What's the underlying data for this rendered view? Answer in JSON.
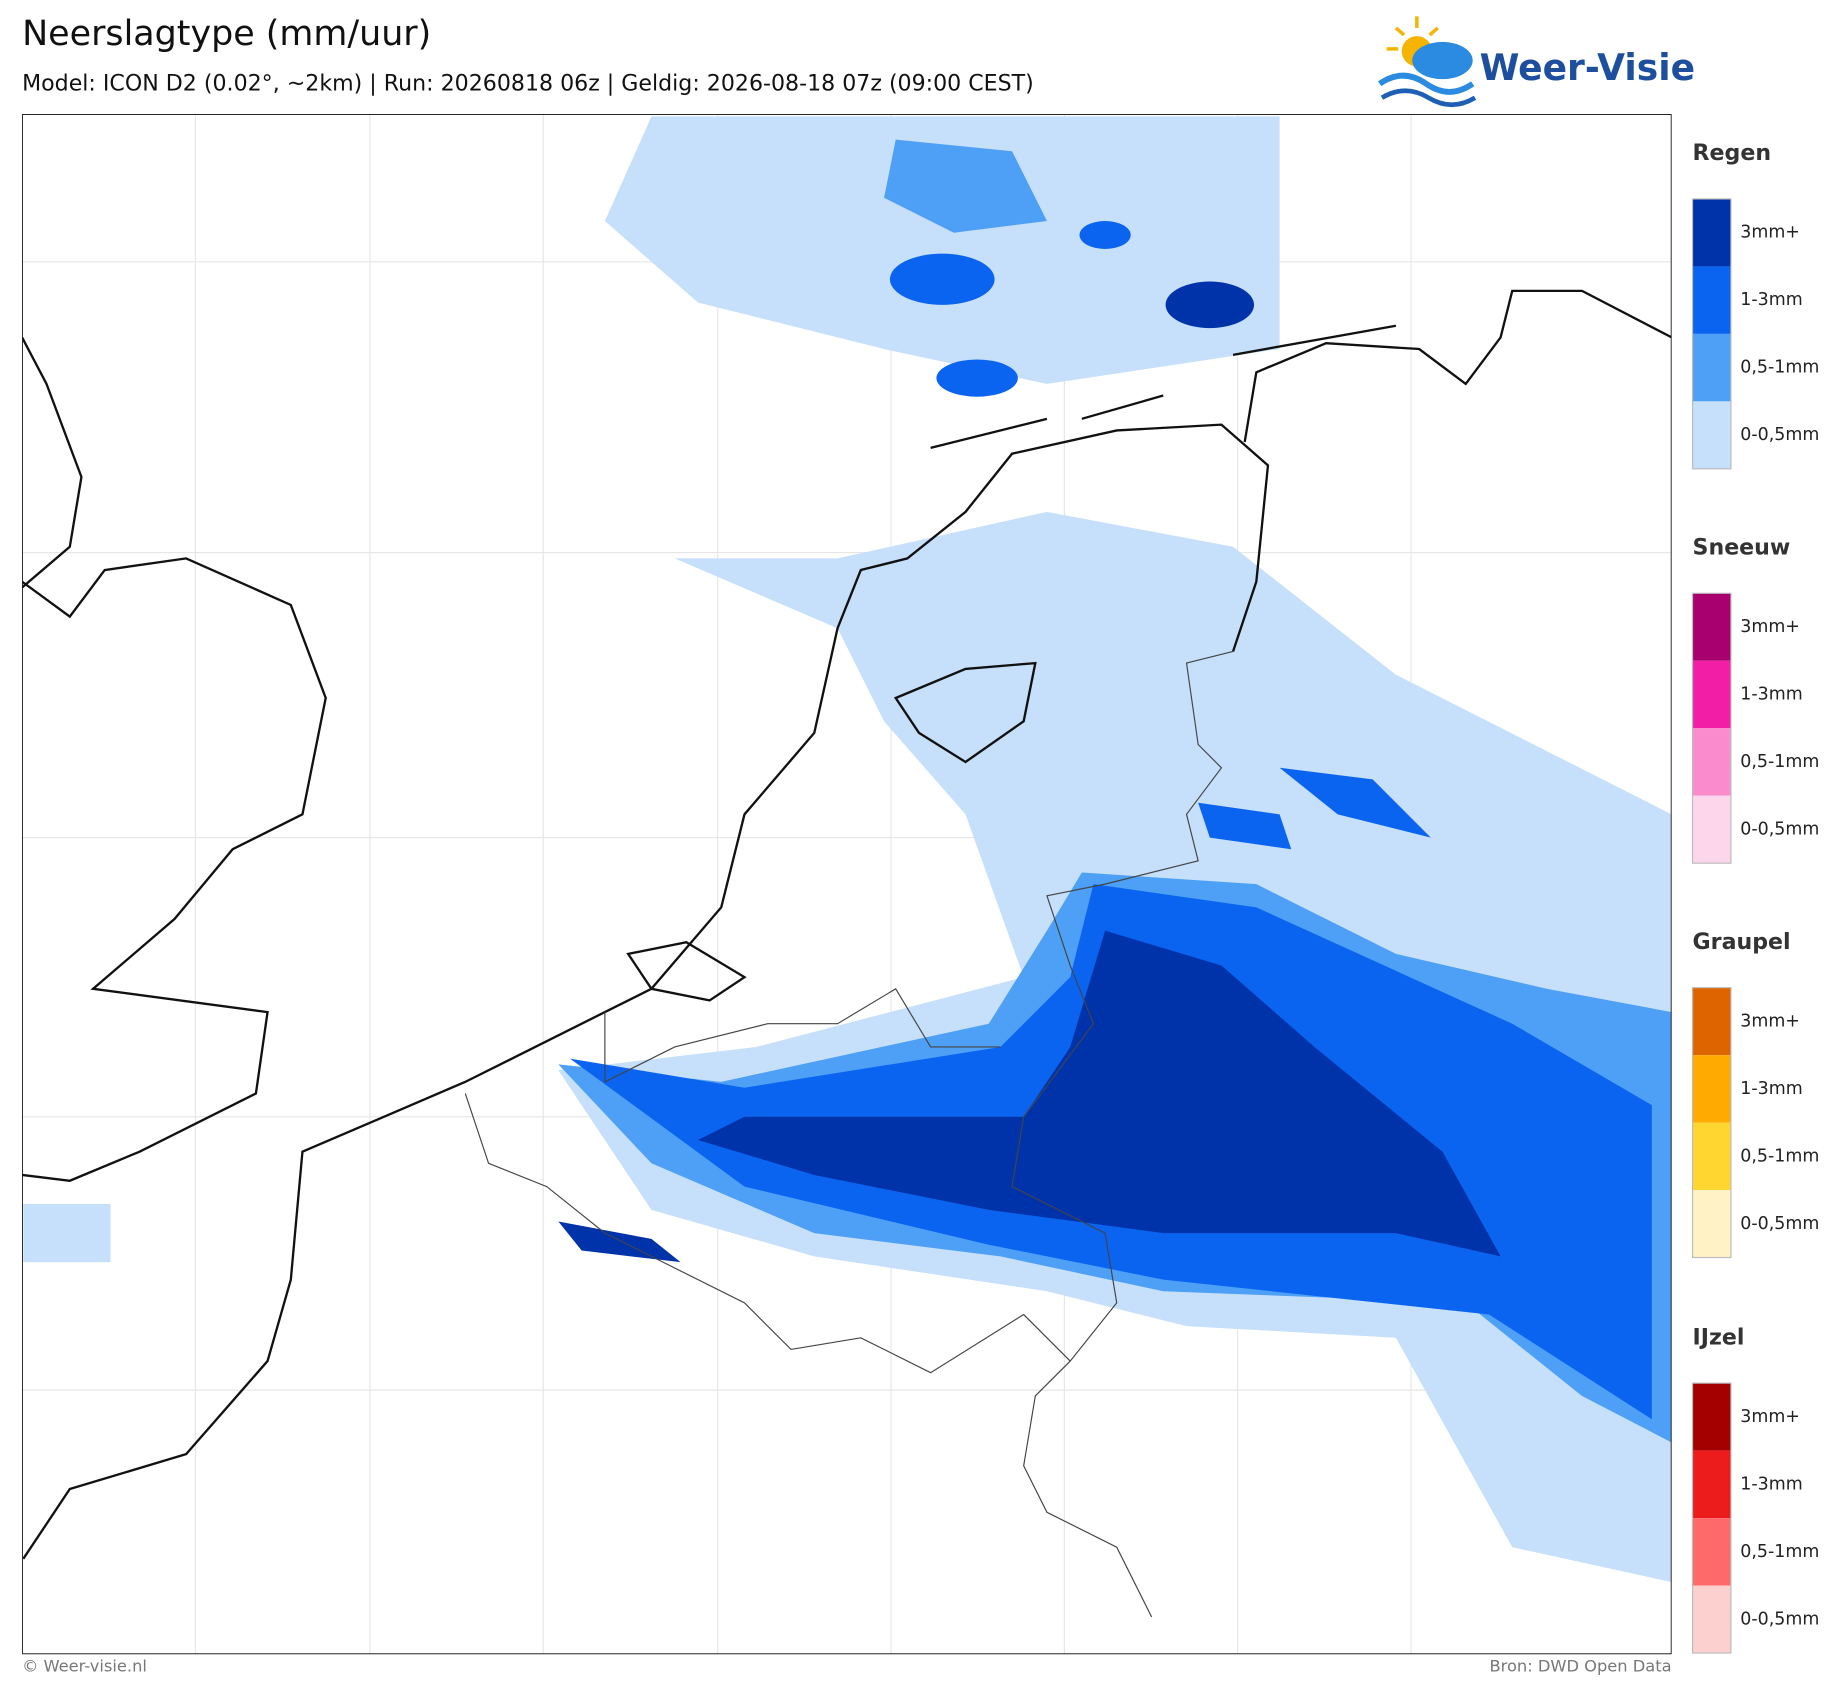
{
  "header": {
    "title": "Neerslagtype (mm/uur)",
    "subtitle": "Model: ICON D2 (0.02°, ~2km)  |  Run: 20260818 06z  |  Geldig: 2026-08-18 07z (09:00 CEST)"
  },
  "logo": {
    "text": "Weer-Visie"
  },
  "legend": [
    {
      "title": "Regen",
      "items": [
        {
          "label": "3mm+",
          "color": "#0033aa"
        },
        {
          "label": "1-3mm",
          "color": "#0a64f0"
        },
        {
          "label": "0,5-1mm",
          "color": "#4da0f5"
        },
        {
          "label": "0-0,5mm",
          "color": "#c6dffa"
        }
      ]
    },
    {
      "title": "Sneeuw",
      "items": [
        {
          "label": "3mm+",
          "color": "#a8006e"
        },
        {
          "label": "1-3mm",
          "color": "#f21ea6"
        },
        {
          "label": "0,5-1mm",
          "color": "#fa8ccd"
        },
        {
          "label": "0-0,5mm",
          "color": "#fdd6ec"
        }
      ]
    },
    {
      "title": "Graupel",
      "items": [
        {
          "label": "3mm+",
          "color": "#de6400"
        },
        {
          "label": "1-3mm",
          "color": "#ffaa00"
        },
        {
          "label": "0,5-1mm",
          "color": "#ffd530"
        },
        {
          "label": "0-0,5mm",
          "color": "#fff2c4"
        }
      ]
    },
    {
      "title": "IJzel",
      "items": [
        {
          "label": "3mm+",
          "color": "#a50000"
        },
        {
          "label": "1-3mm",
          "color": "#ec1c1c"
        },
        {
          "label": "0,5-1mm",
          "color": "#fe6a6a"
        },
        {
          "label": "0-0,5mm",
          "color": "#fdd0d0"
        }
      ]
    }
  ],
  "footer": {
    "left": "© Weer-visie.nl",
    "right": "Bron: DWD Open Data"
  }
}
